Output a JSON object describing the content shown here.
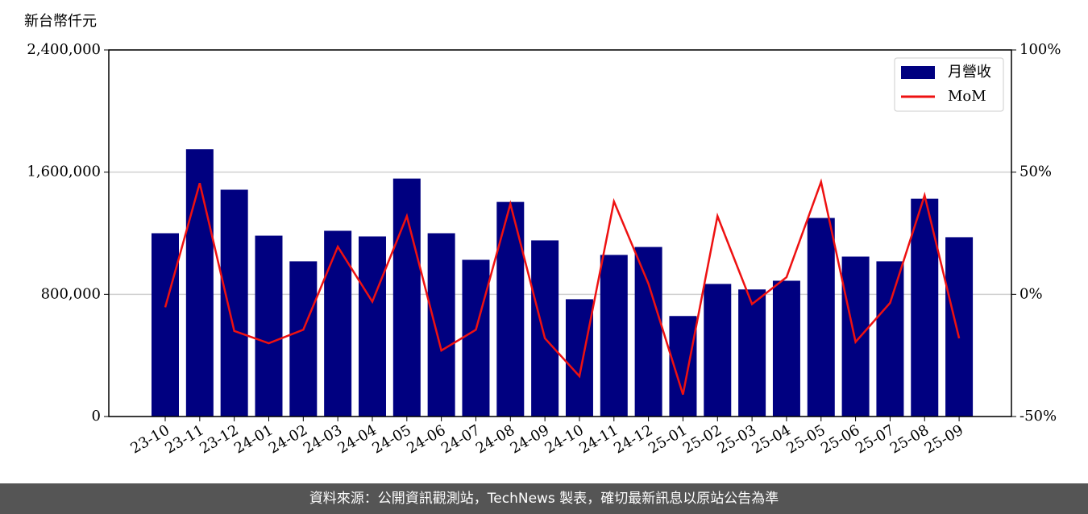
{
  "chart_data": {
    "type": "bar_line",
    "ylabel": "新台幣仟元",
    "source": "資料來源：公開資訊觀測站，TechNews 製表，確切最新訊息以原站公告為準",
    "categories": [
      "23-10",
      "23-11",
      "23-12",
      "24-01",
      "24-02",
      "24-03",
      "24-04",
      "24-05",
      "24-06",
      "24-07",
      "24-08",
      "24-09",
      "24-10",
      "24-11",
      "24-12",
      "25-01",
      "25-02",
      "25-03",
      "25-04",
      "25-05",
      "25-06",
      "25-07",
      "25-08",
      "25-09"
    ],
    "series": [
      {
        "name": "月營收",
        "type": "bar",
        "color": "#000080",
        "values": [
          1200000,
          1750000,
          1485000,
          1184000,
          1016000,
          1216000,
          1179000,
          1558000,
          1200000,
          1026000,
          1405000,
          1153000,
          768000,
          1058000,
          1110000,
          658000,
          868000,
          832000,
          889000,
          1300000,
          1047000,
          1016000,
          1426000,
          1174000
        ]
      },
      {
        "name": "MoM",
        "type": "line",
        "axis": "y2",
        "color": "#ee1111",
        "values": [
          -5.3,
          45.5,
          -15,
          -20,
          -14.5,
          19.5,
          -3,
          32,
          -23,
          -14.5,
          37,
          -18,
          -33.5,
          38,
          4.3,
          -41,
          32,
          -4,
          7,
          46,
          -19.5,
          -3.5,
          40.5,
          -18
        ]
      }
    ],
    "ylim": [
      0,
      2400000
    ],
    "yticks": [
      0,
      {
        "value": 800000,
        "label": "800,000"
      },
      {
        "value": 1600000,
        "label": "1,600,000"
      },
      {
        "value": 2400000,
        "label": "2,400,000"
      }
    ],
    "y2lim": [
      -50,
      100
    ],
    "y2ticks": [
      {
        "value": -50,
        "label": "-50%"
      },
      {
        "value": 0,
        "label": "0%"
      },
      {
        "value": 50,
        "label": "50%"
      },
      {
        "value": 100,
        "label": "100%"
      }
    ],
    "grid": true,
    "legend": "upper right"
  }
}
